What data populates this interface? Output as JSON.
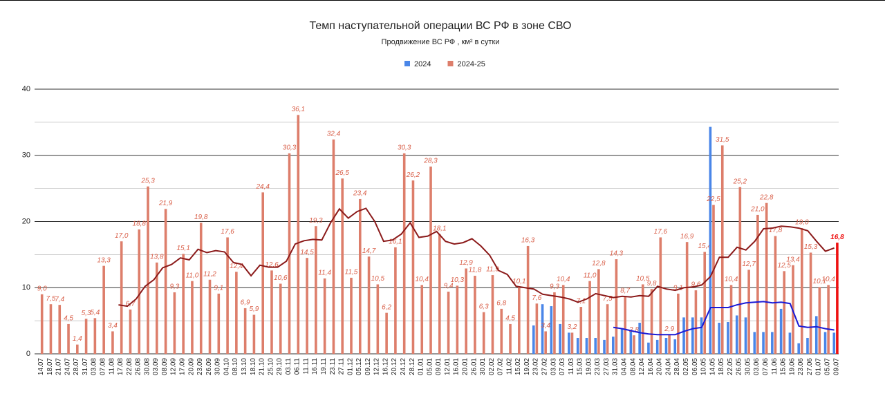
{
  "chart_data": {
    "type": "bar",
    "title": "Темп наступательной операции ВС РФ в зоне СВО",
    "subtitle": "Продвижение ВС РФ , км² в сутки",
    "categories": [
      "14.07",
      "18.07",
      "21.07",
      "24.07",
      "28.07",
      "31.07",
      "03.08",
      "07.08",
      "11.08",
      "17.08",
      "22.08",
      "26.08",
      "30.08",
      "03.09",
      "08.09",
      "12.09",
      "17.09",
      "20.09",
      "23.09",
      "26.09",
      "30.09",
      "04.10",
      "08.10",
      "13.10",
      "18.10",
      "21.10",
      "25.10",
      "29.10",
      "03.11",
      "06.11",
      "11.11",
      "16.11",
      "19.11",
      "23.11",
      "27.11",
      "01.12",
      "05.12",
      "09.12",
      "12.12",
      "16.12",
      "20.12",
      "24.12",
      "28.12",
      "01.01",
      "05.01",
      "09.01",
      "12.01",
      "16.01",
      "20.01",
      "26.01",
      "30.01",
      "02.02",
      "07.02",
      "11.02",
      "15.02",
      "19.02",
      "23.02",
      "27.02",
      "03.03",
      "07.03",
      "11.03",
      "15.03",
      "19.03",
      "23.03",
      "27.03",
      "31.03",
      "04.04",
      "08.04",
      "12.04",
      "16.04",
      "20.04",
      "24.04",
      "28.04",
      "02.05",
      "06.05",
      "10.05",
      "14.05",
      "18.05",
      "22.05",
      "26.05",
      "30.05",
      "03.06",
      "07.06",
      "11.06",
      "15.06",
      "19.06",
      "23.06",
      "27.06",
      "01.07",
      "05.07",
      "09.07"
    ],
    "series": [
      {
        "name": "2024",
        "color": "#4a86e8",
        "values": [
          null,
          null,
          null,
          null,
          null,
          null,
          null,
          null,
          null,
          null,
          null,
          null,
          null,
          null,
          null,
          null,
          null,
          null,
          null,
          null,
          null,
          null,
          null,
          null,
          null,
          null,
          null,
          null,
          null,
          null,
          null,
          null,
          null,
          null,
          null,
          null,
          null,
          null,
          null,
          null,
          null,
          null,
          null,
          null,
          null,
          null,
          null,
          null,
          null,
          null,
          null,
          null,
          null,
          null,
          null,
          null,
          4.3,
          7.5,
          7.2,
          4.5,
          3.2,
          2.4,
          2.4,
          2.4,
          2.1,
          2.6,
          3.8,
          3.6,
          4.7,
          1.7,
          2.1,
          2.4,
          2.2,
          5.5,
          5.5,
          5.5,
          34.3,
          4.7,
          4.8,
          5.8,
          5.5,
          3.3,
          3.3,
          3.3,
          6.8,
          3.2,
          1.6,
          2.4,
          5.7,
          3.3,
          3.2
        ]
      },
      {
        "name": "2024-25",
        "color": "#dd7e6b",
        "values": [
          9.0,
          7.5,
          7.4,
          4.5,
          1.4,
          5.3,
          5.4,
          13.3,
          3.4,
          17.0,
          6.7,
          18.8,
          25.3,
          13.8,
          21.9,
          9.3,
          15.1,
          11.0,
          19.8,
          11.2,
          9.1,
          17.6,
          12.4,
          6.9,
          5.9,
          24.4,
          12.6,
          10.6,
          30.3,
          36.1,
          14.5,
          19.3,
          11.4,
          32.4,
          26.5,
          11.5,
          23.4,
          14.7,
          10.5,
          6.2,
          16.1,
          30.3,
          26.2,
          10.4,
          28.3,
          18.1,
          9.4,
          10.3,
          12.9,
          11.8,
          6.3,
          11.9,
          6.8,
          4.5,
          10.1,
          16.3,
          7.6,
          3.4,
          9.3,
          10.4,
          3.2,
          7.1,
          11.0,
          12.8,
          7.5,
          14.3,
          8.7,
          2.8,
          10.5,
          9.8,
          17.6,
          2.9,
          9.1,
          16.9,
          9.6,
          15.4,
          22.5,
          31.5,
          10.4,
          25.2,
          12.7,
          21.0,
          22.8,
          17.8,
          12.5,
          13.4,
          19.0,
          15.3,
          10.1,
          10.4,
          16.8
        ],
        "value_labels": [
          "9,0",
          "7,5",
          "7,4",
          "4,5",
          "1,4",
          "5,3",
          "5,4",
          "13,3",
          "3,4",
          "17,0",
          "6,7",
          "18,8",
          "25,3",
          "13,8",
          "21,9",
          "9,3",
          "15,1",
          "11,0",
          "19,8",
          "11,2",
          "9,1",
          "17,6",
          "12,4",
          "6,9",
          "5,9",
          "24,4",
          "12,6",
          "10,6",
          "30,3",
          "36,1",
          "14,5",
          "19,3",
          "11,4",
          "32,4",
          "26,5",
          "11,5",
          "23,4",
          "14,7",
          "10,5",
          "6,2",
          "16,1",
          "30,3",
          "26,2",
          "10,4",
          "28,3",
          "18,1",
          "9,4",
          "10,3",
          "12,9",
          "11,8",
          "6,3",
          "11,9",
          "6,8",
          "4,5",
          "10,1",
          "16,3",
          "7,6",
          "3,4",
          "9,3",
          "10,4",
          "3,2",
          "7,1",
          "11,0",
          "12,8",
          "7,5",
          "14,3",
          "8,7",
          "2,8",
          "10,5",
          "9,8",
          "17,6",
          "2,9",
          "9,1",
          "16,9",
          "9,6",
          "15,4",
          "22,5",
          "31,5",
          "10,4",
          "25,2",
          "12,7",
          "21,0",
          "22,8",
          "17,8",
          "12,5",
          "13,4",
          "19,0",
          "15,3",
          "10,1",
          "10,4",
          "16,8"
        ],
        "highlight_last_color": "#ee1111"
      }
    ],
    "trend_lines": [
      {
        "color": "#8b1a1a",
        "values": [
          null,
          null,
          null,
          null,
          null,
          null,
          null,
          null,
          null,
          7.4,
          7.2,
          8.3,
          10.2,
          11.2,
          13.0,
          13.5,
          14.5,
          14.2,
          15.8,
          15.3,
          15.6,
          15.4,
          13.8,
          13.5,
          11.8,
          13.4,
          13.1,
          13.1,
          14.0,
          16.6,
          17.1,
          17.3,
          17.2,
          19.8,
          21.9,
          20.5,
          21.5,
          22.0,
          20.0,
          17.0,
          17.2,
          18.1,
          19.8,
          17.6,
          17.8,
          18.5,
          17.0,
          16.6,
          16.8,
          17.4,
          16.3,
          14.9,
          12.6,
          12.0,
          10.2,
          10.0,
          9.8,
          9.0,
          8.8,
          8.6,
          8.3,
          7.8,
          8.3,
          9.1,
          8.8,
          8.5,
          8.7,
          8.6,
          8.8,
          8.7,
          10.2,
          9.8,
          9.6,
          10.0,
          10.1,
          10.4,
          11.7,
          14.6,
          14.6,
          16.1,
          15.7,
          17.0,
          18.9,
          19.0,
          19.3,
          19.2,
          19.0,
          18.6,
          17.0,
          15.5,
          16.0
        ]
      },
      {
        "color": "#1a1ad6",
        "values": [
          null,
          null,
          null,
          null,
          null,
          null,
          null,
          null,
          null,
          null,
          null,
          null,
          null,
          null,
          null,
          null,
          null,
          null,
          null,
          null,
          null,
          null,
          null,
          null,
          null,
          null,
          null,
          null,
          null,
          null,
          null,
          null,
          null,
          null,
          null,
          null,
          null,
          null,
          null,
          null,
          null,
          null,
          null,
          null,
          null,
          null,
          null,
          null,
          null,
          null,
          null,
          null,
          null,
          null,
          null,
          null,
          null,
          null,
          null,
          null,
          null,
          null,
          null,
          null,
          null,
          4.0,
          3.8,
          3.5,
          3.2,
          3.0,
          2.9,
          2.9,
          2.9,
          3.4,
          3.8,
          4.0,
          7.0,
          7.0,
          7.0,
          7.4,
          7.7,
          7.8,
          7.9,
          7.7,
          7.8,
          7.6,
          4.2,
          4.0,
          4.1,
          3.8,
          3.6
        ]
      }
    ],
    "ylim": [
      0,
      40
    ],
    "yticks": [
      0,
      10,
      20,
      30,
      40
    ],
    "minor_yticks": [
      5,
      15,
      25,
      35
    ],
    "grid": true,
    "legend": "top"
  }
}
